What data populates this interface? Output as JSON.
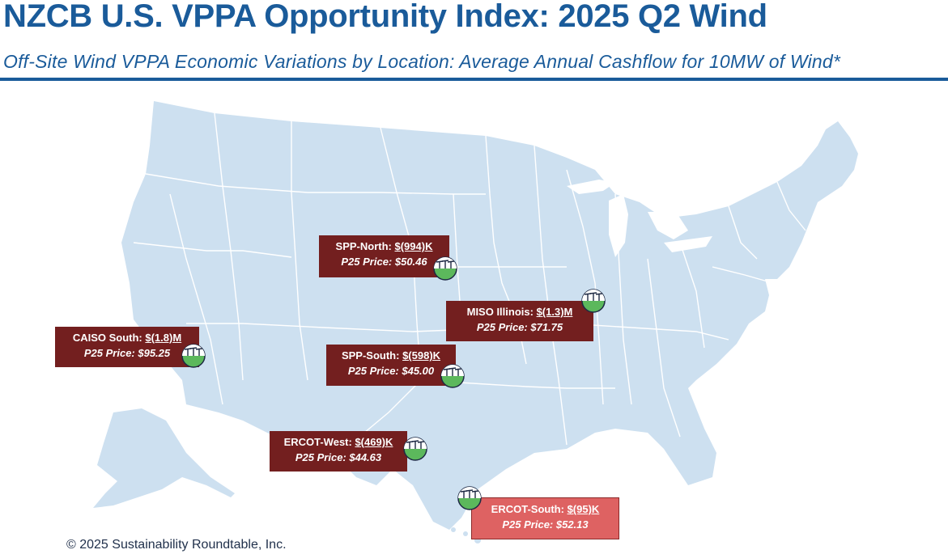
{
  "title": "NZCB U.S. VPPA Opportunity Index: 2025 Q2 Wind",
  "subtitle": "Off-Site Wind VPPA Economic Variations by Location: Average Annual Cashflow for 10MW of Wind*",
  "copyright": "© 2025 Sustainability Roundtable, Inc.",
  "colors": {
    "title": "#1a5b9a",
    "map_fill": "#cde0f0",
    "state_border": "#ffffff",
    "label_dark": "#731f1f",
    "label_light": "#de6262"
  },
  "locations": [
    {
      "name": "SPP-North:",
      "value": "$(994)K",
      "price": "P25 Price: $50.46",
      "style": "dark"
    },
    {
      "name": "MISO Illinois:",
      "value": "$(1.3)M",
      "price": "P25 Price: $71.75",
      "style": "dark"
    },
    {
      "name": "CAISO South:",
      "value": "$(1.8)M",
      "price": "P25 Price: $95.25",
      "style": "dark"
    },
    {
      "name": "SPP-South:",
      "value": "$(598)K",
      "price": "P25 Price: $45.00",
      "style": "dark"
    },
    {
      "name": "ERCOT-West:",
      "value": "$(469)K",
      "price": "P25 Price: $44.63",
      "style": "dark"
    },
    {
      "name": "ERCOT-South:",
      "value": "$(95)K",
      "price": "P25 Price: $52.13",
      "style": "light"
    }
  ],
  "icons": {
    "site_marker": "wind-turbine-icon"
  }
}
